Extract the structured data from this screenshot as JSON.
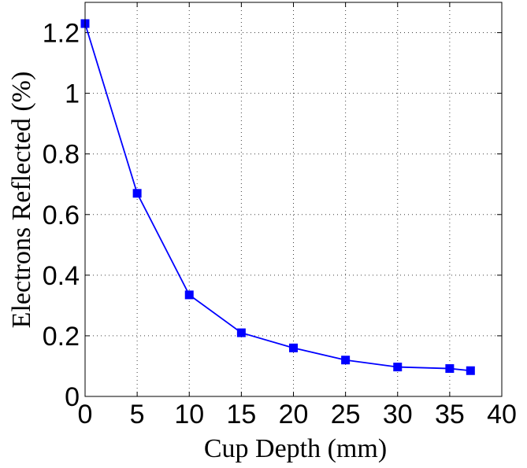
{
  "chart_data": {
    "type": "line",
    "xlabel": "Cup Depth (mm)",
    "ylabel": "Electrons Reflected (%)",
    "xlim": [
      0,
      40
    ],
    "ylim": [
      0,
      1.3
    ],
    "xticks": [
      0,
      5,
      10,
      15,
      20,
      25,
      30,
      35,
      40
    ],
    "yticks": [
      0,
      0.2,
      0.4,
      0.6,
      0.8,
      1,
      1.2
    ],
    "xtick_labels": [
      "0",
      "5",
      "10",
      "15",
      "20",
      "25",
      "30",
      "35",
      "40"
    ],
    "ytick_labels": [
      "0",
      "0.2",
      "0.4",
      "0.6",
      "0.8",
      "1",
      "1.2"
    ],
    "grid": true,
    "series": [
      {
        "color": "#0000ff",
        "marker": "square",
        "x": [
          0,
          5,
          10,
          15,
          20,
          25,
          30,
          35,
          37
        ],
        "y": [
          1.23,
          0.67,
          0.335,
          0.21,
          0.16,
          0.12,
          0.097,
          0.092,
          0.085
        ]
      }
    ]
  }
}
